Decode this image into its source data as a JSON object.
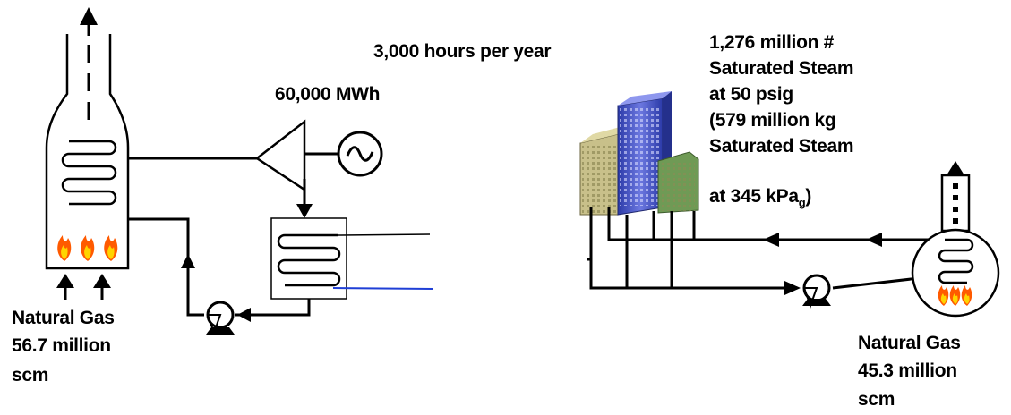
{
  "labels": {
    "hours": "3,000 hours per year",
    "power": "60,000 MWh",
    "steam_line1": "1,276 million #",
    "steam_line2": "Saturated Steam",
    "steam_line3": "at 50 psig",
    "steam_line4": "(579 million kg",
    "steam_line5": "Saturated Steam",
    "steam_line6_pre": "at 345 kPa",
    "steam_line6_sub": "g",
    "steam_line6_post": ")",
    "gas_left_line1": "Natural Gas",
    "gas_left_line2": "56.7 million",
    "gas_left_line3": "scm",
    "gas_right_line1": "Natural Gas",
    "gas_right_line2": "45.3 million",
    "gas_right_line3": "scm"
  },
  "colors": {
    "ink": "#000000",
    "cooling_water": "#1f3fd6",
    "flame_outer": "#ff5a00",
    "flame_inner": "#ffd400",
    "building_blue": "#4a57c8",
    "building_tan": "#c8c08a",
    "building_green": "#6f9a55"
  },
  "icons": [
    "gas-arrow-icon",
    "flame-icon",
    "generator-icon",
    "pump-icon",
    "building-icon",
    "exhaust-arrow-icon"
  ]
}
